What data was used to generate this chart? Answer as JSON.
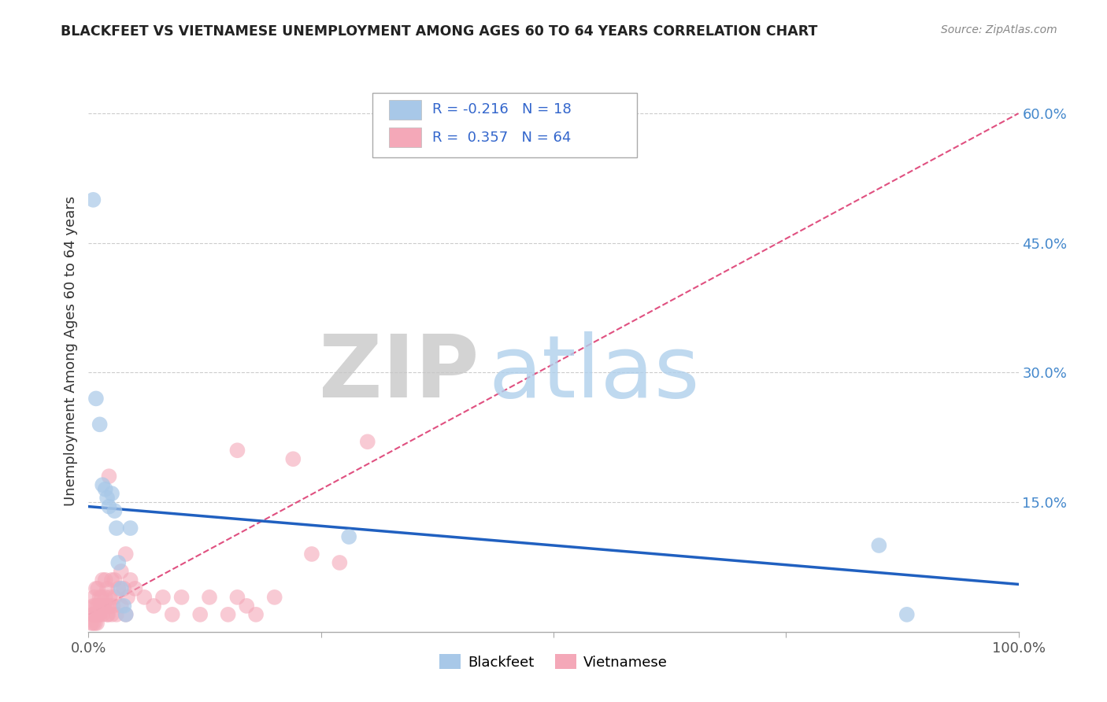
{
  "title": "BLACKFEET VS VIETNAMESE UNEMPLOYMENT AMONG AGES 60 TO 64 YEARS CORRELATION CHART",
  "source": "Source: ZipAtlas.com",
  "ylabel": "Unemployment Among Ages 60 to 64 years",
  "xlim": [
    0,
    1.0
  ],
  "ylim": [
    0,
    0.65
  ],
  "xticks": [
    0.0,
    0.25,
    0.5,
    0.75,
    1.0
  ],
  "xtick_labels": [
    "0.0%",
    "",
    "",
    "",
    "100.0%"
  ],
  "yticks": [
    0.15,
    0.3,
    0.45,
    0.6
  ],
  "ytick_labels_right": [
    "15.0%",
    "30.0%",
    "45.0%",
    "60.0%"
  ],
  "blackfeet_R": -0.216,
  "blackfeet_N": 18,
  "vietnamese_R": 0.357,
  "vietnamese_N": 64,
  "blackfeet_color": "#a8c8e8",
  "vietnamese_color": "#f4a8b8",
  "blackfeet_line_color": "#2060c0",
  "vietnamese_line_color": "#e05080",
  "watermark_zip": "ZIP",
  "watermark_atlas": "atlas",
  "blackfeet_x": [
    0.005,
    0.008,
    0.012,
    0.015,
    0.018,
    0.02,
    0.022,
    0.025,
    0.028,
    0.03,
    0.032,
    0.035,
    0.038,
    0.04,
    0.045,
    0.28,
    0.85,
    0.88
  ],
  "blackfeet_y": [
    0.5,
    0.27,
    0.24,
    0.17,
    0.165,
    0.155,
    0.145,
    0.16,
    0.14,
    0.12,
    0.08,
    0.05,
    0.03,
    0.02,
    0.12,
    0.11,
    0.1,
    0.02
  ],
  "vietnamese_x": [
    0.003,
    0.004,
    0.005,
    0.005,
    0.006,
    0.006,
    0.007,
    0.007,
    0.008,
    0.008,
    0.009,
    0.009,
    0.01,
    0.01,
    0.011,
    0.012,
    0.012,
    0.013,
    0.014,
    0.015,
    0.015,
    0.016,
    0.017,
    0.018,
    0.018,
    0.019,
    0.02,
    0.02,
    0.021,
    0.022,
    0.022,
    0.023,
    0.025,
    0.025,
    0.026,
    0.028,
    0.028,
    0.03,
    0.032,
    0.035,
    0.035,
    0.038,
    0.04,
    0.04,
    0.042,
    0.045,
    0.05,
    0.06,
    0.07,
    0.08,
    0.09,
    0.1,
    0.12,
    0.13,
    0.15,
    0.16,
    0.17,
    0.18,
    0.2,
    0.22,
    0.24,
    0.27,
    0.3,
    0.16
  ],
  "vietnamese_y": [
    0.01,
    0.02,
    0.01,
    0.03,
    0.02,
    0.04,
    0.01,
    0.03,
    0.02,
    0.05,
    0.01,
    0.03,
    0.02,
    0.05,
    0.03,
    0.02,
    0.04,
    0.03,
    0.04,
    0.02,
    0.06,
    0.03,
    0.03,
    0.04,
    0.06,
    0.03,
    0.02,
    0.05,
    0.02,
    0.18,
    0.03,
    0.04,
    0.02,
    0.06,
    0.03,
    0.04,
    0.06,
    0.02,
    0.05,
    0.07,
    0.03,
    0.05,
    0.02,
    0.09,
    0.04,
    0.06,
    0.05,
    0.04,
    0.03,
    0.04,
    0.02,
    0.04,
    0.02,
    0.04,
    0.02,
    0.04,
    0.03,
    0.02,
    0.04,
    0.2,
    0.09,
    0.08,
    0.22,
    0.21
  ]
}
